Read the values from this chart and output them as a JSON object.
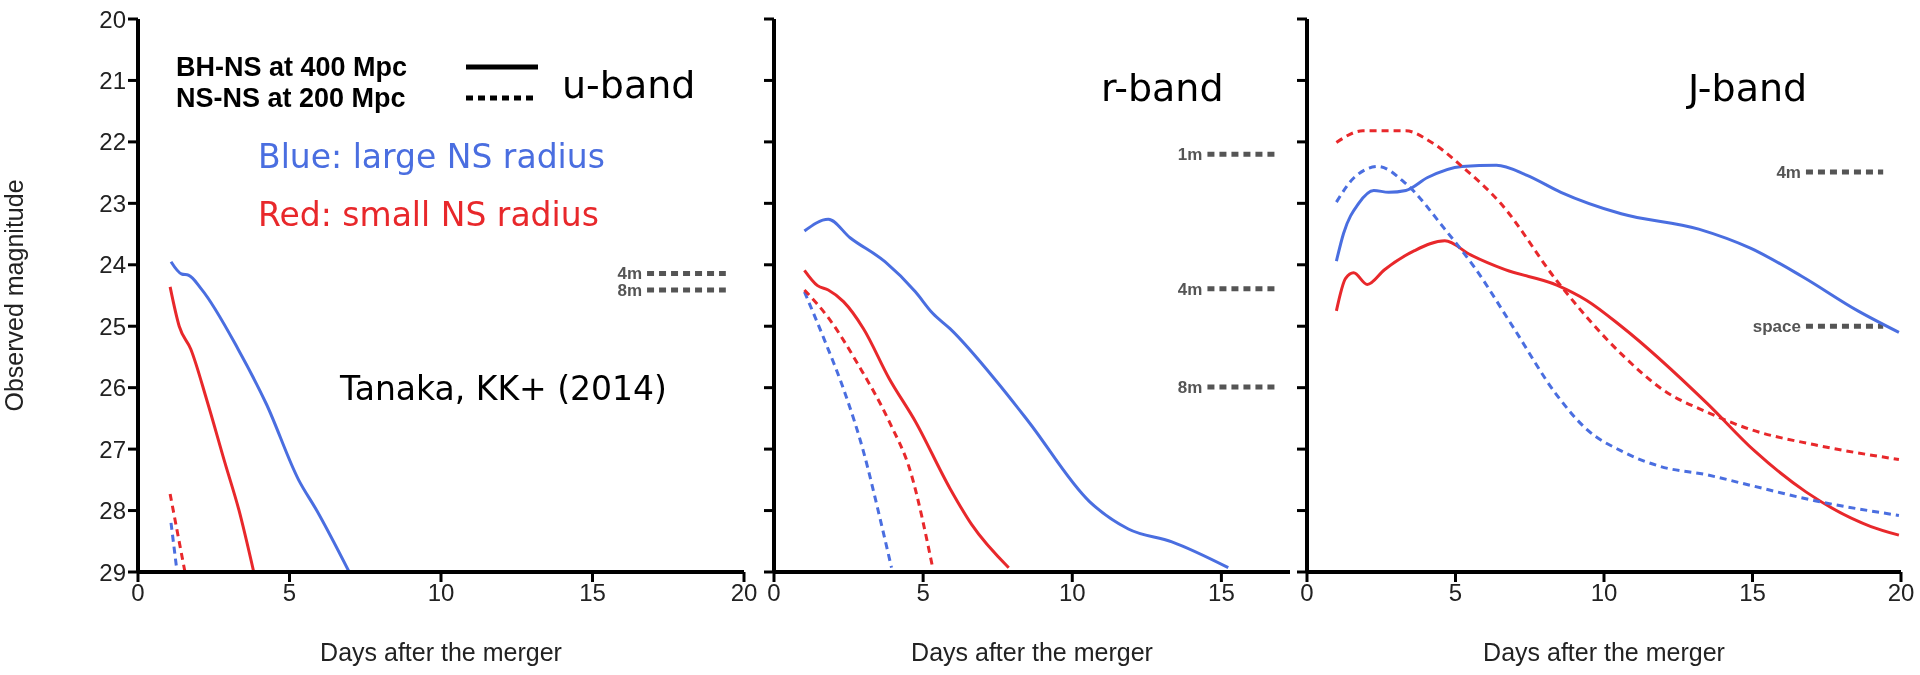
{
  "chart_data": [
    {
      "type": "line",
      "title": "u-band",
      "xlabel": "Days after the merger",
      "ylabel": "Observed magnitude",
      "xlim": [
        0,
        20
      ],
      "xticks": [
        0,
        5,
        10,
        15,
        20
      ],
      "ylim": [
        29,
        20
      ],
      "yticks": [
        20,
        21,
        22,
        23,
        24,
        25,
        26,
        27,
        28,
        29
      ],
      "annotations": [
        "BH-NS at 400 Mpc",
        "NS-NS at 200 Mpc",
        "Blue: large NS radius",
        "Red: small NS radius",
        "Tanaka, KK+ (2014)"
      ],
      "ref_lines": [
        {
          "axis": "y",
          "value": 24.14,
          "label": "4m",
          "color": "#555555",
          "line_style": "dashed"
        },
        {
          "axis": "y",
          "value": 24.41,
          "label": "8m",
          "color": "#555555",
          "line_style": "dashed"
        }
      ],
      "series": [
        {
          "color": "#4a6ee0",
          "line_style": "solid",
          "x": [
            1.09,
            1.44,
            1.67,
            2.1,
            3.3,
            4.24,
            5.3,
            5.9,
            6.97
          ],
          "values": [
            23.95,
            24.15,
            24.17,
            24.4,
            25.37,
            26.27,
            27.5,
            28.0,
            29
          ]
        },
        {
          "color": "#e8282b",
          "line_style": "solid",
          "x": [
            1.06,
            1.36,
            1.74,
            2.27,
            2.88,
            3.33,
            3.82
          ],
          "values": [
            24.36,
            25.0,
            25.37,
            26.2,
            27.24,
            27.99,
            29
          ]
        },
        {
          "color": "#4a6ee0",
          "line_style": "dashed",
          "x": [
            1.09,
            1.29
          ],
          "values": [
            28.2,
            29
          ]
        },
        {
          "color": "#e8282b",
          "line_style": "dashed",
          "x": [
            1.06,
            1.55
          ],
          "values": [
            27.73,
            29
          ]
        }
      ]
    },
    {
      "type": "line",
      "title": "r-band",
      "xlabel": "Days after the merger",
      "xlim": [
        0,
        17.3
      ],
      "xticks": [
        0,
        5,
        10,
        15
      ],
      "ylim": [
        29,
        20
      ],
      "yticks": [
        20,
        21,
        22,
        23,
        24,
        25,
        26,
        27,
        28,
        29
      ],
      "tick_labels": "x",
      "ref_lines": [
        {
          "axis": "y",
          "value": 22.2,
          "label": "1m",
          "color": "#555555",
          "line_style": "dashed"
        },
        {
          "axis": "y",
          "value": 24.39,
          "label": "4m",
          "color": "#555555",
          "line_style": "dashed"
        },
        {
          "axis": "y",
          "value": 25.99,
          "label": "8m",
          "color": "#555555",
          "line_style": "dashed"
        }
      ],
      "series": [
        {
          "color": "#4a6ee0",
          "line_style": "solid",
          "x": [
            1.02,
            1.82,
            2.55,
            3.72,
            4.74,
            5.32,
            5.9,
            7.5,
            8.53,
            10.57,
            11.88,
            13.34,
            15.23
          ],
          "values": [
            23.45,
            23.26,
            23.56,
            23.95,
            24.44,
            24.79,
            25.04,
            25.92,
            26.55,
            27.85,
            28.3,
            28.51,
            28.93
          ]
        },
        {
          "color": "#e8282b",
          "line_style": "solid",
          "x": [
            1.02,
            1.46,
            1.82,
            2.33,
            3.0,
            3.86,
            4.74,
            5.9,
            6.63,
            7.87
          ],
          "values": [
            24.09,
            24.34,
            24.41,
            24.6,
            25.04,
            25.85,
            26.55,
            27.64,
            28.23,
            28.93
          ]
        },
        {
          "color": "#4a6ee0",
          "line_style": "dashed",
          "x": [
            1.02,
            1.68,
            2.41,
            3.0,
            3.57,
            3.94
          ],
          "values": [
            24.44,
            25.21,
            26.13,
            27.04,
            28.16,
            28.93
          ]
        },
        {
          "color": "#e8282b",
          "line_style": "dashed",
          "x": [
            1.02,
            1.82,
            2.84,
            3.86,
            4.59,
            5.32
          ],
          "values": [
            24.41,
            24.86,
            25.64,
            26.55,
            27.39,
            28.93
          ]
        }
      ]
    },
    {
      "type": "line",
      "title": "J-band",
      "xlabel": "Days after the merger",
      "xlim": [
        0,
        20
      ],
      "xticks": [
        0,
        5,
        10,
        15,
        20
      ],
      "ylim": [
        29,
        20
      ],
      "yticks": [
        20,
        21,
        22,
        23,
        24,
        25,
        26,
        27,
        28,
        29
      ],
      "tick_labels": "x",
      "ref_lines": [
        {
          "axis": "y",
          "value": 22.49,
          "label": "4m",
          "color": "#555555",
          "line_style": "dashed"
        },
        {
          "axis": "y",
          "value": 25.0,
          "label": "space",
          "color": "#555555",
          "line_style": "dashed"
        }
      ],
      "series": [
        {
          "color": "#4a6ee0",
          "line_style": "solid",
          "x": [
            0.99,
            1.23,
            1.74,
            2.25,
            2.75,
            3.33,
            4.06,
            5.22,
            6.38,
            7.39,
            8.55,
            10.58,
            13.19,
            14.93,
            16.67,
            18.55,
            19.93
          ],
          "values": [
            23.94,
            23.49,
            23.0,
            22.79,
            22.82,
            22.79,
            22.58,
            22.4,
            22.38,
            22.54,
            22.82,
            23.17,
            23.42,
            23.73,
            24.19,
            24.75,
            25.1
          ]
        },
        {
          "color": "#e8282b",
          "line_style": "solid",
          "x": [
            0.99,
            1.3,
            1.57,
            2.03,
            2.61,
            3.62,
            4.64,
            5.51,
            6.67,
            8.41,
            9.42,
            10.58,
            13.48,
            15.07,
            16.81,
            18.99,
            19.93
          ],
          "values": [
            24.75,
            24.22,
            24.13,
            24.32,
            24.08,
            23.77,
            23.61,
            23.84,
            24.08,
            24.33,
            24.58,
            25.0,
            26.26,
            27.03,
            27.7,
            28.26,
            28.4
          ]
        },
        {
          "color": "#4a6ee0",
          "line_style": "dashed",
          "x": [
            0.99,
            1.59,
            2.39,
            3.33,
            4.64,
            5.65,
            6.96,
            8.41,
            9.42,
            10.58,
            11.88,
            13.48,
            14.93,
            17.1,
            19.93
          ],
          "values": [
            22.98,
            22.58,
            22.4,
            22.68,
            23.42,
            24.05,
            25.03,
            26.12,
            26.68,
            27.03,
            27.28,
            27.42,
            27.59,
            27.84,
            28.08
          ]
        },
        {
          "color": "#e8282b",
          "line_style": "dashed",
          "x": [
            0.99,
            1.88,
            3.33,
            4.2,
            5.22,
            6.52,
            8.41,
            10.58,
            12.03,
            13.48,
            14.93,
            17.1,
            19.93
          ],
          "values": [
            22.01,
            21.82,
            21.82,
            22.01,
            22.4,
            23.0,
            24.26,
            25.45,
            26.05,
            26.4,
            26.68,
            26.93,
            27.17
          ]
        }
      ]
    }
  ]
}
